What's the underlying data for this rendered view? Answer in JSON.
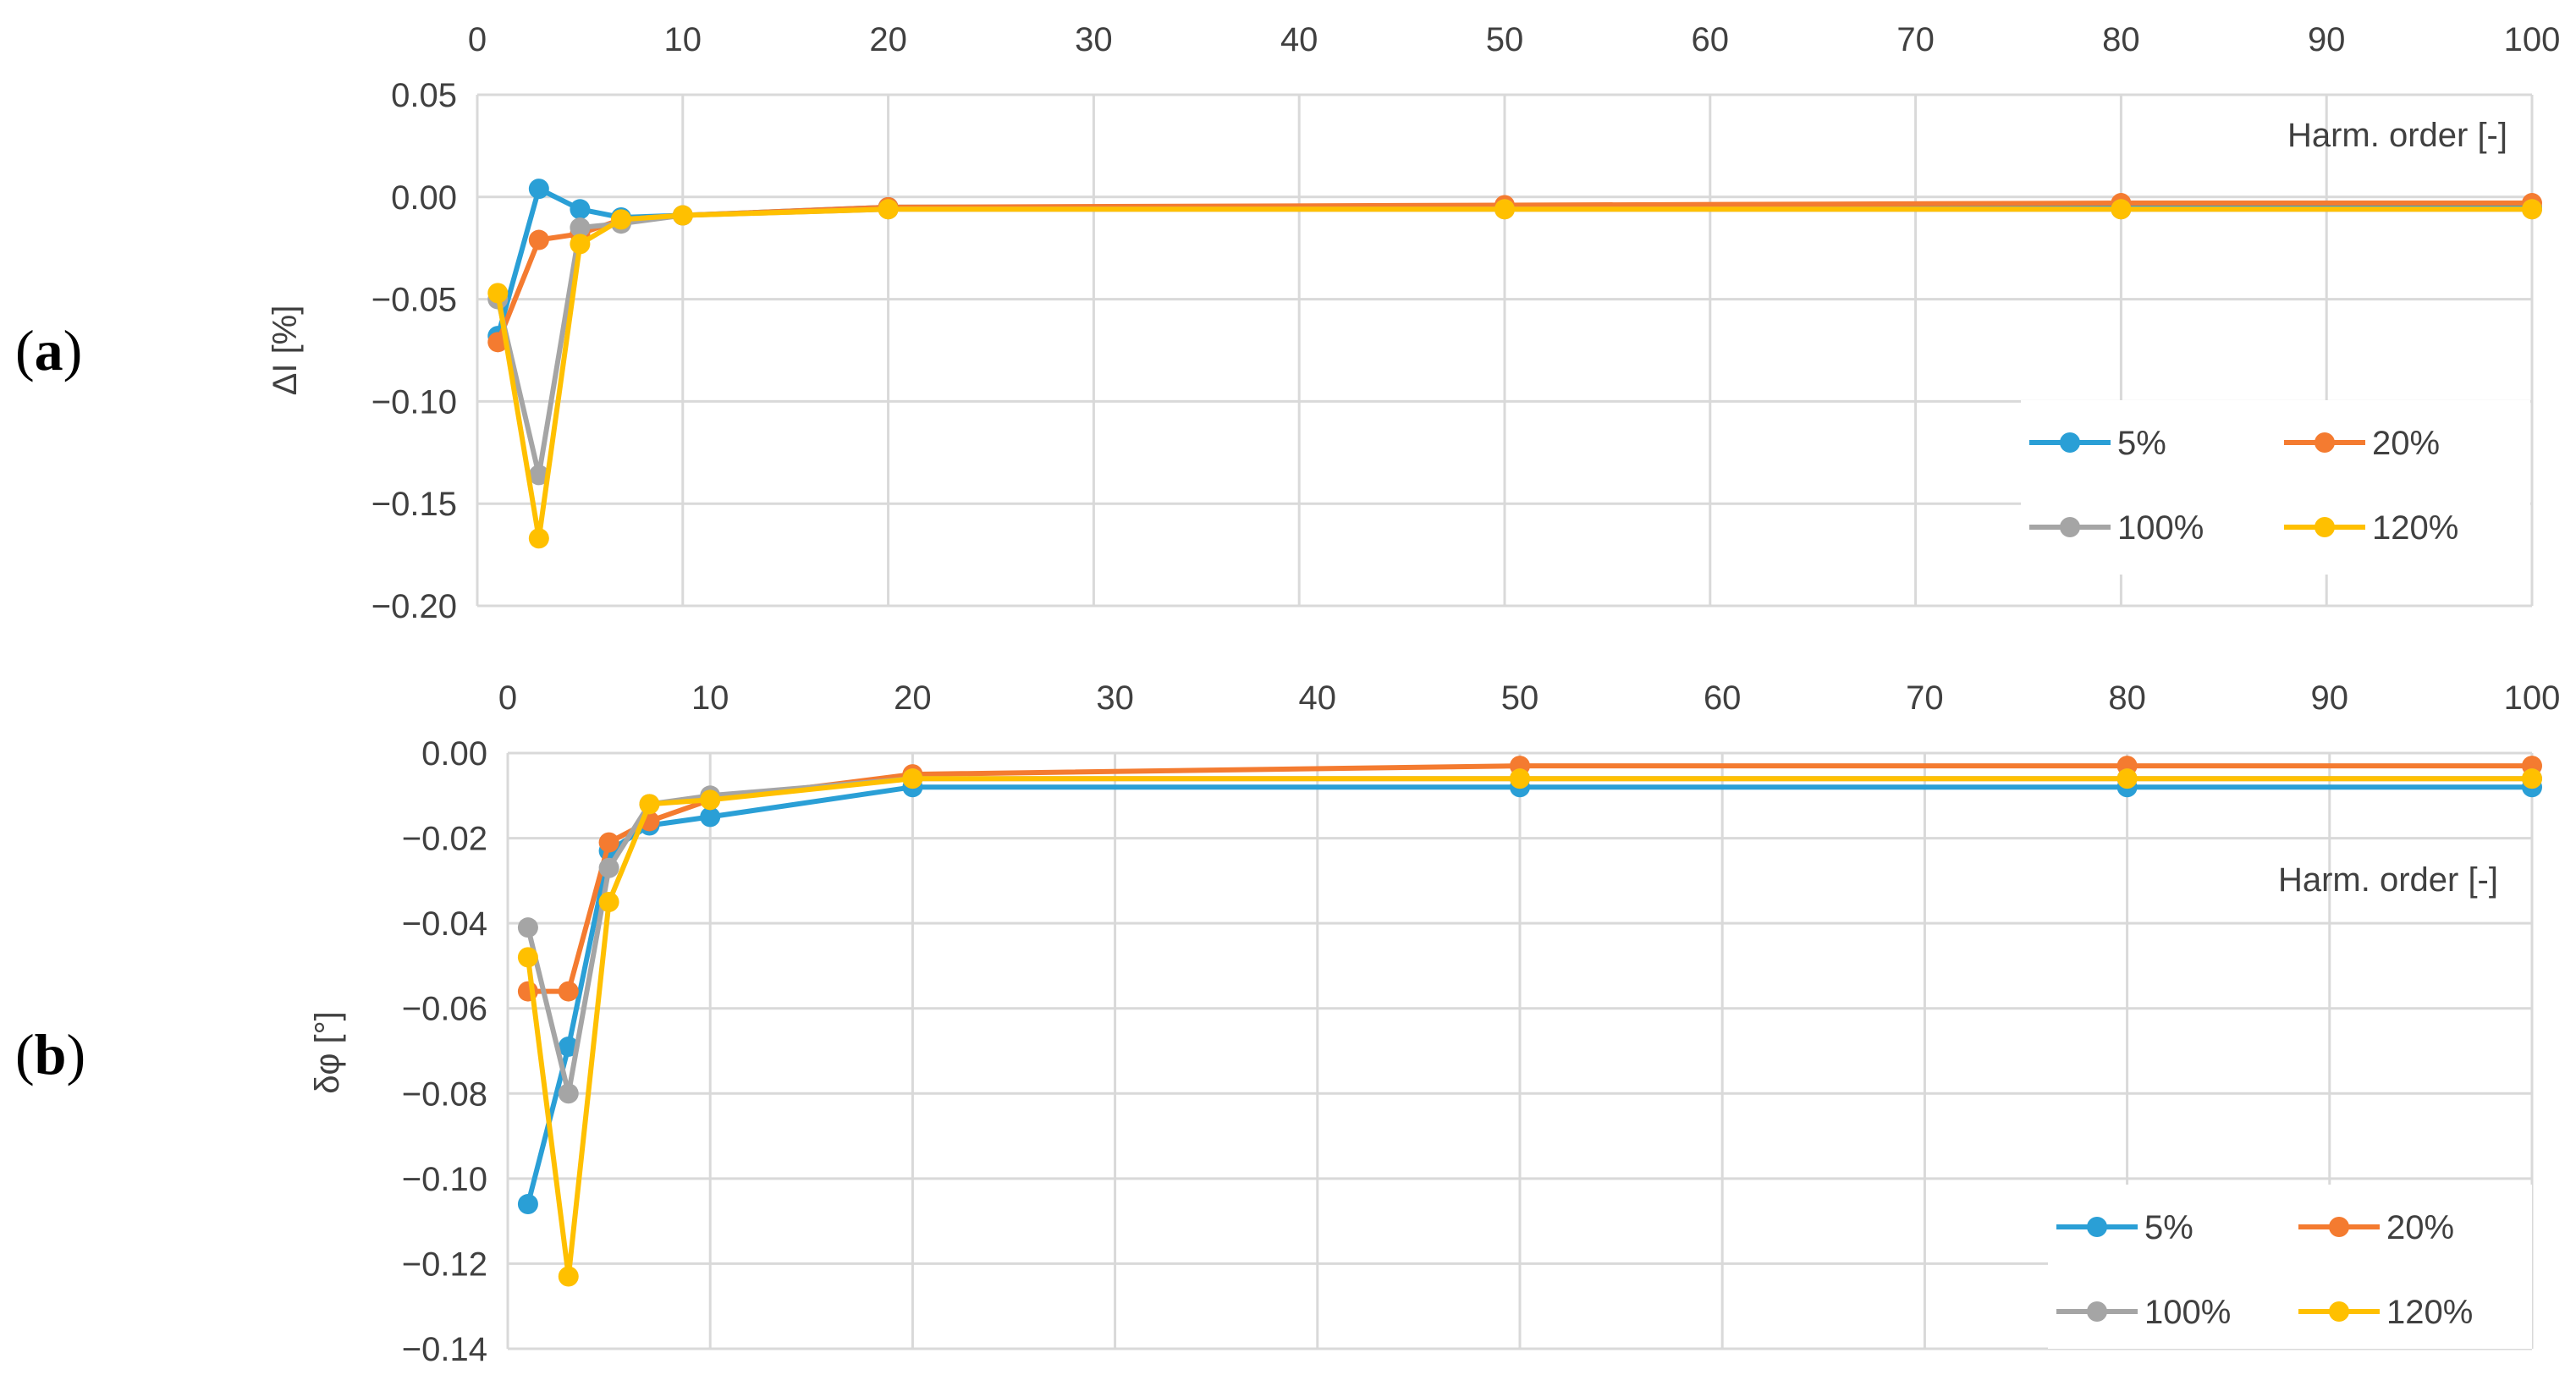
{
  "panels": [
    {
      "tag_open": "(",
      "tag_letter": "a",
      "tag_close": ")"
    },
    {
      "tag_open": "(",
      "tag_letter": "b",
      "tag_close": ")"
    }
  ],
  "colors": {
    "s5": "#2a9fd6",
    "s20": "#f47b30",
    "s100": "#a5a5a5",
    "s120": "#ffc000",
    "grid": "#d9d9d9"
  },
  "chart_data": [
    {
      "type": "line",
      "ylabel": "ΔI [%]",
      "xlabel": "Harm. order [-]",
      "x_ticks": [
        0,
        10,
        20,
        30,
        40,
        50,
        60,
        70,
        80,
        90,
        100
      ],
      "y_ticks": [
        "0.05",
        "0.00",
        "−0.05",
        "−0.10",
        "−0.15",
        "−0.20"
      ],
      "ylim": [
        -0.2,
        0.05
      ],
      "xlim": [
        0,
        100
      ],
      "grid": true,
      "legend_position": "bottom-right",
      "x": [
        1,
        3,
        5,
        7,
        10,
        20,
        50,
        80,
        100
      ],
      "series": [
        {
          "name": "5%",
          "color_key": "s5",
          "values": [
            -0.068,
            0.004,
            -0.006,
            -0.01,
            -0.009,
            -0.005,
            -0.005,
            -0.005,
            -0.005
          ]
        },
        {
          "name": "20%",
          "color_key": "s20",
          "values": [
            -0.071,
            -0.021,
            -0.018,
            -0.011,
            -0.009,
            -0.005,
            -0.004,
            -0.003,
            -0.003
          ]
        },
        {
          "name": "100%",
          "color_key": "s100",
          "values": [
            -0.05,
            -0.136,
            -0.015,
            -0.013,
            -0.009,
            -0.006,
            -0.006,
            -0.006,
            -0.006
          ]
        },
        {
          "name": "120%",
          "color_key": "s120",
          "values": [
            -0.047,
            -0.167,
            -0.023,
            -0.011,
            -0.009,
            -0.006,
            -0.006,
            -0.006,
            -0.006
          ]
        }
      ]
    },
    {
      "type": "line",
      "ylabel": "δφ [°]",
      "xlabel": "Harm. order [-]",
      "x_ticks": [
        0,
        10,
        20,
        30,
        40,
        50,
        60,
        70,
        80,
        90,
        100
      ],
      "y_ticks": [
        "0.00",
        "−0.02",
        "−0.04",
        "−0.06",
        "−0.08",
        "−0.10",
        "−0.12",
        "−0.14"
      ],
      "ylim": [
        -0.14,
        0.0
      ],
      "xlim": [
        0,
        100
      ],
      "grid": true,
      "legend_position": "bottom-right",
      "x": [
        1,
        3,
        5,
        7,
        10,
        20,
        50,
        80,
        100
      ],
      "series": [
        {
          "name": "5%",
          "color_key": "s5",
          "values": [
            -0.106,
            -0.069,
            -0.023,
            -0.017,
            -0.015,
            -0.008,
            -0.008,
            -0.008,
            -0.008
          ]
        },
        {
          "name": "20%",
          "color_key": "s20",
          "values": [
            -0.056,
            -0.056,
            -0.021,
            -0.016,
            -0.011,
            -0.005,
            -0.003,
            -0.003,
            -0.003
          ]
        },
        {
          "name": "100%",
          "color_key": "s100",
          "values": [
            -0.041,
            -0.08,
            -0.027,
            -0.012,
            -0.01,
            -0.006,
            -0.006,
            -0.006,
            -0.006
          ]
        },
        {
          "name": "120%",
          "color_key": "s120",
          "values": [
            -0.048,
            -0.123,
            -0.035,
            -0.012,
            -0.011,
            -0.006,
            -0.006,
            -0.006,
            -0.006
          ]
        }
      ]
    }
  ]
}
